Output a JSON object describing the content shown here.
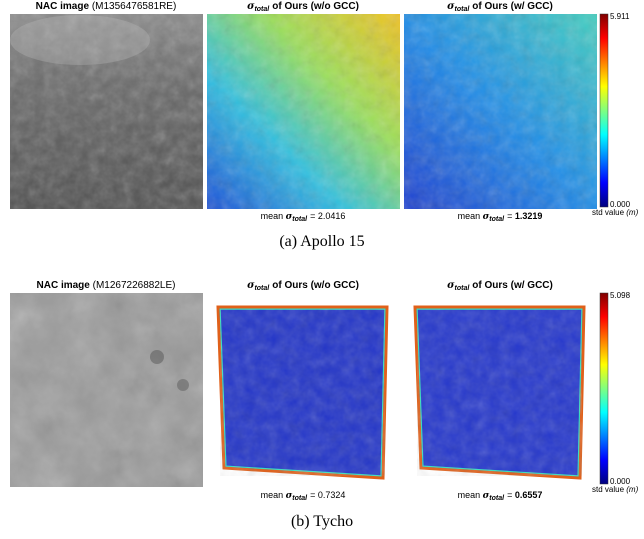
{
  "panels": [
    {
      "nac_title": {
        "label": "NAC image",
        "id": "(M1356476581RE)"
      },
      "maps": [
        {
          "symbol": "σ",
          "subscript": "total",
          "title": "of Ours (w/o GCC)",
          "mean_prefix": "mean",
          "mean_symbol": "σ",
          "mean_subscript": "total",
          "equals": "=",
          "mean_value": "2.0416"
        },
        {
          "symbol": "σ",
          "subscript": "total",
          "title": "of Ours (w/ GCC)",
          "mean_prefix": "mean",
          "mean_symbol": "σ",
          "mean_subscript": "total",
          "equals": "=",
          "mean_value": "1.3219"
        }
      ],
      "colorbar": {
        "max": "5.911",
        "min": "0.000",
        "label": "std value",
        "unit": "(m)"
      },
      "caption": "(a) Apollo 15"
    },
    {
      "nac_title": {
        "label": "NAC image",
        "id": "(M1267226882LE)"
      },
      "maps": [
        {
          "symbol": "σ",
          "subscript": "total",
          "title": "of Ours (w/o GCC)",
          "mean_prefix": "mean",
          "mean_symbol": "σ",
          "mean_subscript": "total",
          "equals": "=",
          "mean_value": "0.7324"
        },
        {
          "symbol": "σ",
          "subscript": "total",
          "title": "of Ours (w/ GCC)",
          "mean_prefix": "mean",
          "mean_symbol": "σ",
          "mean_subscript": "total",
          "equals": "=",
          "mean_value": "0.6557"
        }
      ],
      "colorbar": {
        "max": "5.098",
        "min": "0.000",
        "label": "std value",
        "unit": "(m)"
      },
      "caption": "(b) Tycho"
    }
  ]
}
